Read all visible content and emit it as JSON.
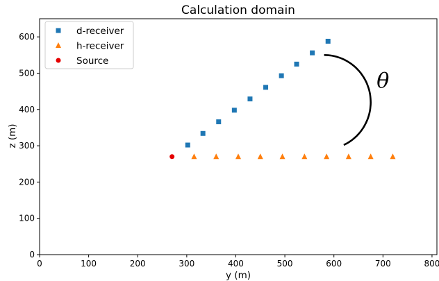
{
  "chart_data": {
    "type": "scatter",
    "title": "Calculation domain",
    "xlabel": "y (m)",
    "ylabel": "z (m)",
    "xlim": [
      0,
      810
    ],
    "ylim": [
      0,
      650
    ],
    "xticks": [
      0,
      100,
      200,
      300,
      400,
      500,
      600,
      700,
      800
    ],
    "yticks": [
      0,
      100,
      200,
      300,
      400,
      500,
      600
    ],
    "grid": false,
    "legend_position": "upper-left",
    "series": [
      {
        "name": "d-receiver",
        "marker": "square",
        "color": "#1f77b4",
        "points": [
          {
            "x": 302,
            "y": 302
          },
          {
            "x": 333,
            "y": 334
          },
          {
            "x": 365,
            "y": 366
          },
          {
            "x": 397,
            "y": 398
          },
          {
            "x": 429,
            "y": 429
          },
          {
            "x": 461,
            "y": 461
          },
          {
            "x": 493,
            "y": 493
          },
          {
            "x": 524,
            "y": 525
          },
          {
            "x": 556,
            "y": 556
          },
          {
            "x": 588,
            "y": 588
          }
        ]
      },
      {
        "name": "h-receiver",
        "marker": "triangle",
        "color": "#ff7f0e",
        "points": [
          {
            "x": 315,
            "y": 270
          },
          {
            "x": 360,
            "y": 270
          },
          {
            "x": 405,
            "y": 270
          },
          {
            "x": 450,
            "y": 270
          },
          {
            "x": 495,
            "y": 270
          },
          {
            "x": 540,
            "y": 270
          },
          {
            "x": 585,
            "y": 270
          },
          {
            "x": 630,
            "y": 270
          },
          {
            "x": 675,
            "y": 270
          },
          {
            "x": 720,
            "y": 270
          }
        ]
      },
      {
        "name": "Source",
        "marker": "circle",
        "color": "#e50000",
        "points": [
          {
            "x": 270,
            "y": 270
          }
        ]
      }
    ],
    "annotations": [
      {
        "type": "arc",
        "label": "θ",
        "center": {
          "x": 580,
          "y": 420
        },
        "radius_y": 95,
        "radius_z": 130,
        "start_deg": 90,
        "end_deg": -65,
        "label_position": {
          "x": 700,
          "y": 460
        }
      }
    ]
  }
}
